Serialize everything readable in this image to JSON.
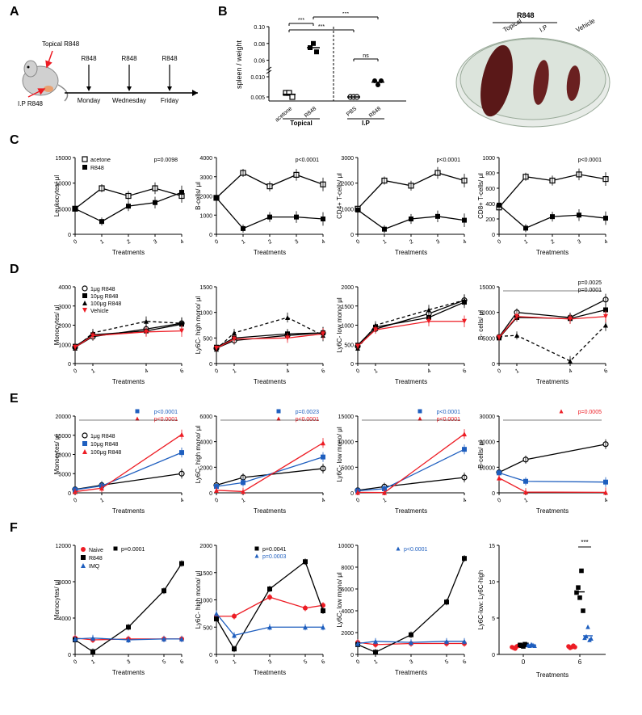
{
  "panel_labels": {
    "A": "A",
    "B": "B",
    "C": "C",
    "D": "D",
    "E": "E",
    "F": "F"
  },
  "A": {
    "topical_label": "Topical R848",
    "ip_label": "I.P R848",
    "days": [
      "Monday",
      "Wednesday",
      "Friday"
    ],
    "arrow_label": "R848"
  },
  "B": {
    "ylabel": "spleen / weight",
    "yticks": [
      0.005,
      0.01,
      0.06,
      0.08,
      0.1
    ],
    "groups": [
      "acetone",
      "R848",
      "PBS",
      "R848"
    ],
    "group_labels": [
      "Topical",
      "I.P"
    ],
    "data": {
      "acetone": [
        0.006,
        0.006,
        0.005
      ],
      "R848_top": [
        0.075,
        0.08,
        0.07
      ],
      "PBS": [
        0.005,
        0.005,
        0.005
      ],
      "R848_ip": [
        0.009,
        0.008,
        0.009
      ]
    },
    "sig": [
      "***",
      "***",
      "***",
      "ns"
    ],
    "photo_labels": [
      "Topical",
      "I.P",
      "Vehicle"
    ],
    "photo_title": "R848"
  },
  "C": {
    "xlabel": "Treatments",
    "xticks": [
      0,
      1,
      2,
      3,
      4
    ],
    "legend": [
      "acetone",
      "R848"
    ],
    "charts": [
      {
        "ylabel": "Leukocytes/ μl",
        "ymax": 15000,
        "ytick": 5000,
        "pval": "p=0.0098",
        "acetone": [
          5000,
          9000,
          7500,
          9000,
          7500
        ],
        "r848": [
          5000,
          2500,
          5500,
          6200,
          8200
        ]
      },
      {
        "ylabel": "B-cells/ μl",
        "ymax": 4000,
        "ytick": 1000,
        "pval": "p<0.0001",
        "acetone": [
          1900,
          3200,
          2500,
          3100,
          2600
        ],
        "r848": [
          1900,
          300,
          900,
          900,
          800
        ]
      },
      {
        "ylabel": "CD4+ T-cells/ μl",
        "ymax": 3000,
        "ytick": 1000,
        "pval": "p<0.0001",
        "acetone": [
          1000,
          2100,
          1900,
          2400,
          2100
        ],
        "r848": [
          950,
          200,
          600,
          700,
          550
        ]
      },
      {
        "ylabel": "CD8+ T-cells/ μl",
        "ymax": 1000,
        "ytick": 200,
        "pval": "p<0.0001",
        "acetone": [
          350,
          750,
          700,
          780,
          720
        ],
        "r848": [
          380,
          80,
          230,
          250,
          210
        ]
      }
    ],
    "colors": {
      "acetone": "#000",
      "r848": "#000"
    },
    "markers": {
      "acetone": "open-square",
      "r848": "filled-square"
    }
  },
  "D": {
    "xlabel": "Treatments",
    "xticks": [
      0,
      1,
      4,
      6
    ],
    "legend": [
      "1μg R848",
      "10μg R848",
      "100μg R848",
      "Vehicle"
    ],
    "colors": {
      "1ug": "#000",
      "10ug": "#000",
      "100ug": "#000",
      "vehicle": "#ed1c24"
    },
    "markers": {
      "1ug": "open-circle",
      "10ug": "filled-square",
      "100ug": "filled-triangle",
      "vehicle": "filled-triangle-red"
    },
    "charts": [
      {
        "ylabel": "Monocytes/ μl",
        "ymax": 4000,
        "ytick": 1000,
        "d1": [
          850,
          1400,
          1800,
          2100
        ],
        "d10": [
          900,
          1500,
          1700,
          2050
        ],
        "d100": [
          800,
          1600,
          2200,
          2100
        ],
        "veh": [
          850,
          1450,
          1650,
          1700
        ]
      },
      {
        "ylabel": "Ly6C- high mono/ μl",
        "ymax": 1500,
        "ytick": 500,
        "d1": [
          300,
          450,
          550,
          600
        ],
        "d10": [
          320,
          500,
          580,
          600
        ],
        "d100": [
          280,
          600,
          900,
          550
        ],
        "veh": [
          300,
          480,
          500,
          580
        ]
      },
      {
        "ylabel": "Ly6C- low mono/ μl",
        "ymax": 2000,
        "ytick": 500,
        "d1": [
          450,
          900,
          1300,
          1650
        ],
        "d10": [
          480,
          950,
          1200,
          1600
        ],
        "d100": [
          400,
          1000,
          1400,
          1650
        ],
        "veh": [
          450,
          880,
          1100,
          1100
        ]
      },
      {
        "ylabel": "B- cells/ μl",
        "ymax": 15000,
        "ytick": 5000,
        "d1": [
          5200,
          10000,
          9000,
          12500
        ],
        "d10": [
          5000,
          9000,
          8800,
          10500
        ],
        "d100": [
          5300,
          5500,
          500,
          7500
        ],
        "veh": [
          5100,
          9200,
          8700,
          9200
        ],
        "pvals": [
          "p=0.0025",
          "p=0.0001"
        ]
      }
    ]
  },
  "E": {
    "xlabel": "Treatments",
    "xticks": [
      0,
      1,
      4
    ],
    "legend": [
      "1μg R848",
      "10μg R848",
      "100μg R848"
    ],
    "colors": {
      "1ug": "#000",
      "10ug": "#1f5fbf",
      "100ug": "#ed1c24"
    },
    "markers": {
      "1ug": "open-circle",
      "10ug": "filled-square",
      "100ug": "filled-triangle"
    },
    "charts": [
      {
        "ylabel": "Monocytes/ μl",
        "ymax": 20000,
        "ytick": 5000,
        "d1": [
          900,
          2000,
          5000
        ],
        "d10": [
          800,
          1800,
          10500
        ],
        "d100": [
          300,
          1200,
          15200
        ],
        "pvals": [
          {
            "t": "p<0.0001",
            "c": "#1f5fbf"
          },
          {
            "t": "p<0.0001",
            "c": "#ed1c24"
          }
        ]
      },
      {
        "ylabel": "Ly6C- high mono/ μl",
        "ymax": 6000,
        "ytick": 2000,
        "d1": [
          600,
          1200,
          1900
        ],
        "d10": [
          500,
          800,
          2800
        ],
        "d100": [
          200,
          100,
          3900
        ],
        "pvals": [
          {
            "t": "p=0.0023",
            "c": "#1f5fbf"
          },
          {
            "t": "p<0.0001",
            "c": "#ed1c24"
          }
        ]
      },
      {
        "ylabel": "Ly6C- low mono/ μl",
        "ymax": 15000,
        "ytick": 5000,
        "d1": [
          500,
          1200,
          3000
        ],
        "d10": [
          400,
          800,
          8500
        ],
        "d100": [
          100,
          50,
          11500
        ],
        "pvals": [
          {
            "t": "p<0.0001",
            "c": "#1f5fbf"
          },
          {
            "t": "p<0.0001",
            "c": "#ed1c24"
          }
        ]
      },
      {
        "ylabel": "B-cells/ μl",
        "ymax": 30000,
        "ytick": 10000,
        "d1": [
          8000,
          13000,
          19000
        ],
        "d10": [
          7800,
          4500,
          4200
        ],
        "d100": [
          5800,
          300,
          200
        ],
        "pvals": [
          {
            "t": "p=0.0005",
            "c": "#ed1c24"
          }
        ]
      }
    ]
  },
  "F": {
    "xlabel": "Treatments",
    "xticks": [
      0,
      1,
      3,
      5,
      6
    ],
    "legend": [
      "Naive",
      "R848",
      "IMQ"
    ],
    "colors": {
      "naive": "#ed1c24",
      "r848": "#000",
      "imq": "#1f5fbf"
    },
    "markers": {
      "naive": "filled-circle",
      "r848": "filled-square",
      "imq": "filled-triangle"
    },
    "charts": [
      {
        "ylabel": "Monocytes/ μl",
        "ymax": 1500,
        "ytick": 500,
        "ymax_actual": 12000,
        "ytick_actual": 4000,
        "naive": [
          1800,
          1600,
          1700,
          1700,
          1700
        ],
        "r848": [
          1600,
          300,
          3000,
          7000,
          10000
        ],
        "imq": [
          1700,
          1800,
          1600,
          1700,
          1700
        ],
        "pvals": [
          {
            "t": "p=0.0001",
            "c": "#000"
          }
        ]
      },
      {
        "ylabel": "Ly6C- high mono/ μl",
        "ymax": 2000,
        "ytick": 500,
        "naive": [
          700,
          700,
          1050,
          850,
          900
        ],
        "r848": [
          650,
          100,
          1200,
          1700,
          800
        ],
        "imq": [
          750,
          350,
          500,
          500,
          500
        ],
        "pvals": [
          {
            "t": "p=0.0041",
            "c": "#000"
          },
          {
            "t": "p=0.0003",
            "c": "#1f5fbf"
          }
        ]
      },
      {
        "ylabel": "Ly6C- low mono/ μl",
        "ymax": 10000,
        "ytick": 2000,
        "naive": [
          1100,
          900,
          1000,
          1000,
          1000
        ],
        "r848": [
          900,
          200,
          1800,
          4800,
          8800
        ],
        "imq": [
          1000,
          1200,
          1100,
          1200,
          1200
        ],
        "pvals": [
          {
            "t": "p<0.0001",
            "c": "#1f5fbf"
          }
        ]
      },
      {
        "type": "scatter",
        "ylabel": "Ly6C-low: Ly6C-high",
        "ymax": 15,
        "ytick": 5,
        "xticks": [
          0,
          6
        ],
        "sig": "***",
        "groups": {
          "0": {
            "naive": [
              1.0,
              0.9,
              0.8,
              1.1,
              1.2
            ],
            "r848": [
              1.3,
              1.2,
              1.1,
              1.4,
              1.3
            ],
            "imq": [
              1.3,
              1.2,
              1.4,
              1.3,
              1.2
            ]
          },
          "6": {
            "naive": [
              1.1,
              0.9,
              1.0,
              1.2,
              1.0
            ],
            "r848": [
              8.5,
              9.2,
              7.8,
              11.5,
              6.0
            ],
            "imq": [
              2.3,
              2.5,
              3.8,
              2.0,
              2.2
            ]
          }
        }
      }
    ]
  },
  "style": {
    "axis_color": "#000",
    "grid_color": "#fff",
    "font_size_label": 9,
    "font_size_tick": 8,
    "line_width": 1.2,
    "marker_size": 4
  }
}
